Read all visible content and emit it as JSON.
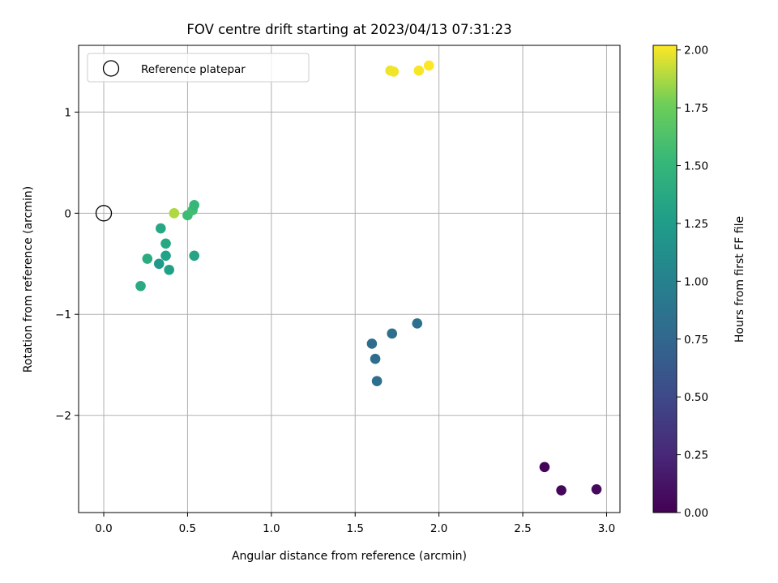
{
  "chart_data": {
    "type": "scatter",
    "title": "FOV centre drift starting at 2023/04/13 07:31:23",
    "xlabel": "Angular distance from reference (arcmin)",
    "ylabel": "Rotation from reference (arcmin)",
    "xlim": [
      -0.15,
      3.08
    ],
    "ylim": [
      -2.96,
      1.66
    ],
    "xticks": [
      0.0,
      0.5,
      1.0,
      1.5,
      2.0,
      2.5,
      3.0
    ],
    "xtick_labels": [
      "0.0",
      "0.5",
      "1.0",
      "1.5",
      "2.0",
      "2.5",
      "3.0"
    ],
    "yticks": [
      1,
      0,
      -1,
      -2
    ],
    "ytick_labels": [
      "1",
      "0",
      "−1",
      "−2"
    ],
    "grid": true,
    "legend": {
      "location": "upper-left",
      "entries": [
        {
          "label": "Reference platepar",
          "marker": "open-circle",
          "x": 0.0,
          "y": 0.0
        }
      ]
    },
    "colorbar": {
      "label": "Hours from first FF file",
      "colormap": "viridis",
      "range": [
        0.0,
        2.02
      ],
      "ticks": [
        0.0,
        0.25,
        0.5,
        0.75,
        1.0,
        1.25,
        1.5,
        1.75,
        2.0
      ],
      "tick_labels": [
        "0.00",
        "0.25",
        "0.50",
        "0.75",
        "1.00",
        "1.25",
        "1.50",
        "1.75",
        "2.00"
      ]
    },
    "points": [
      {
        "x": 2.63,
        "y": -2.51,
        "c": 0.02
      },
      {
        "x": 2.73,
        "y": -2.74,
        "c": 0.04
      },
      {
        "x": 2.94,
        "y": -2.73,
        "c": 0.06
      },
      {
        "x": 1.6,
        "y": -1.29,
        "c": 0.8
      },
      {
        "x": 1.62,
        "y": -1.44,
        "c": 0.81
      },
      {
        "x": 1.63,
        "y": -1.66,
        "c": 0.82
      },
      {
        "x": 1.72,
        "y": -1.19,
        "c": 0.83
      },
      {
        "x": 1.87,
        "y": -1.09,
        "c": 0.84
      },
      {
        "x": 0.22,
        "y": -0.72,
        "c": 1.38
      },
      {
        "x": 0.26,
        "y": -0.45,
        "c": 1.4
      },
      {
        "x": 0.33,
        "y": -0.5,
        "c": 1.22
      },
      {
        "x": 0.34,
        "y": -0.15,
        "c": 1.35
      },
      {
        "x": 0.37,
        "y": -0.3,
        "c": 1.36
      },
      {
        "x": 0.37,
        "y": -0.42,
        "c": 1.3
      },
      {
        "x": 0.39,
        "y": -0.56,
        "c": 1.28
      },
      {
        "x": 0.54,
        "y": -0.42,
        "c": 1.33
      },
      {
        "x": 0.42,
        "y": 0.0,
        "c": 1.88
      },
      {
        "x": 0.5,
        "y": -0.02,
        "c": 1.55
      },
      {
        "x": 0.53,
        "y": 0.03,
        "c": 1.57
      },
      {
        "x": 0.54,
        "y": 0.08,
        "c": 1.52
      },
      {
        "x": 1.71,
        "y": 1.41,
        "c": 1.99
      },
      {
        "x": 1.73,
        "y": 1.4,
        "c": 2.0
      },
      {
        "x": 1.88,
        "y": 1.41,
        "c": 2.01
      },
      {
        "x": 1.94,
        "y": 1.46,
        "c": 2.02
      }
    ]
  }
}
